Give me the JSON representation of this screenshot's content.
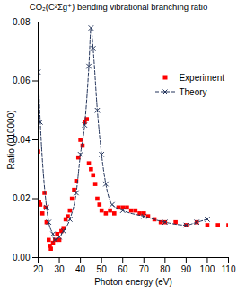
{
  "chart_data": {
    "type": "line",
    "title": "CO₂(C²Σg⁺) bending vibrational branching ratio",
    "x_label": "Photon energy (eV)",
    "y_label": "Ratio (010000)",
    "xlim": [
      20,
      110
    ],
    "xticks": [
      20,
      30,
      40,
      50,
      60,
      70,
      80,
      90,
      100,
      110
    ],
    "ylim": [
      0,
      0.08
    ],
    "yticks": [
      {
        "value": 0,
        "label": "0.00"
      },
      {
        "value": 0.02,
        "label": "0.02"
      },
      {
        "value": 0.04,
        "label": "0.04"
      },
      {
        "value": 0.06,
        "label": "0.06"
      },
      {
        "value": 0.08,
        "label": "0.08"
      }
    ],
    "legend": "upper right",
    "series": [
      {
        "name": "Experiment",
        "type": "scatter",
        "marker": "square",
        "color": "#ff0000",
        "x": [
          20,
          20.5,
          21,
          22,
          23,
          23.5,
          24,
          25,
          25.5,
          26,
          27,
          28,
          29,
          30,
          31,
          32,
          33,
          34,
          35,
          36,
          37,
          38,
          39,
          40,
          41,
          42,
          43,
          44,
          45,
          46,
          47,
          48,
          49,
          50,
          52,
          54,
          56,
          58,
          60,
          62,
          64,
          66,
          68,
          70,
          72,
          75,
          78,
          80,
          85,
          90,
          95,
          100,
          105,
          110
        ],
        "values": [
          0.036,
          0.019,
          0.018,
          0.015,
          0.022,
          0.017,
          0.012,
          0.006,
          0.004,
          0.003,
          0.005,
          0.006,
          0.008,
          0.006,
          0.009,
          0.01,
          0.013,
          0.014,
          0.016,
          0.02,
          0.023,
          0.026,
          0.034,
          0.04,
          0.038,
          0.046,
          0.047,
          0.032,
          0.03,
          0.028,
          0.025,
          0.02,
          0.018,
          0.016,
          0.015,
          0.016,
          0.015,
          0.017,
          0.017,
          0.017,
          0.016,
          0.016,
          0.015,
          0.015,
          0.014,
          0.013,
          0.012,
          0.012,
          0.012,
          0.011,
          0.012,
          0.011,
          0.011,
          0.011
        ]
      },
      {
        "name": "Theory",
        "type": "line",
        "marker": "x",
        "line_style": "dashed",
        "color": "#22335a",
        "x": [
          20,
          21,
          24,
          25,
          27,
          28,
          30,
          32,
          35,
          38,
          40,
          42,
          44,
          45,
          46,
          48,
          50,
          52,
          55,
          60,
          70,
          80,
          90,
          95,
          100
        ],
        "values": [
          0.063,
          0.046,
          0.017,
          0.012,
          0.008,
          0.006,
          0.007,
          0.009,
          0.013,
          0.022,
          0.035,
          0.045,
          0.065,
          0.078,
          0.071,
          0.05,
          0.035,
          0.025,
          0.018,
          0.016,
          0.014,
          0.012,
          0.011,
          0.012,
          0.013
        ]
      }
    ]
  }
}
